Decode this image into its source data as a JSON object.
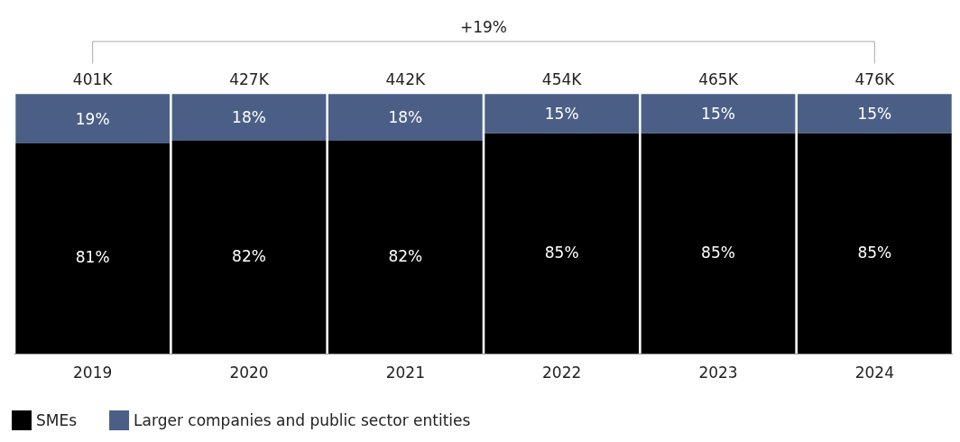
{
  "chart_data": {
    "type": "bar",
    "stacked": true,
    "categories": [
      "2019",
      "2020",
      "2021",
      "2022",
      "2023",
      "2024"
    ],
    "series": [
      {
        "name": "SMEs",
        "color": "#000000",
        "values": [
          81,
          82,
          82,
          85,
          85,
          85
        ],
        "value_labels": [
          "81%",
          "82%",
          "82%",
          "85%",
          "85%",
          "85%"
        ]
      },
      {
        "name": "Larger companies and public sector entities",
        "color": "#4b5f86",
        "values": [
          19,
          18,
          18,
          15,
          15,
          15
        ],
        "value_labels": [
          "19%",
          "18%",
          "18%",
          "15%",
          "15%",
          "15%"
        ]
      }
    ],
    "annotations": [
      "+19%",
      {
        "text": "401K",
        "x": "2019",
        "y": 100
      },
      {
        "text": "427K",
        "x": "2020",
        "y": 100
      },
      {
        "text": "442K",
        "x": "2021",
        "y": 100
      },
      {
        "text": "454K",
        "x": "2022",
        "y": 100
      },
      {
        "text": "465K",
        "x": "2023",
        "y": 100
      },
      {
        "text": "476K",
        "x": "2024",
        "y": 100
      }
    ],
    "legend": "bottom left",
    "grid": false
  }
}
